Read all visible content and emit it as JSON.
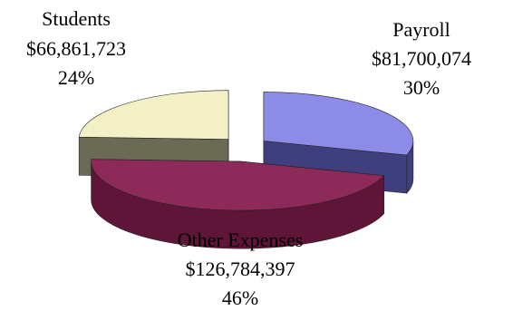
{
  "chart_data": {
    "type": "pie",
    "three_d": true,
    "exploded": true,
    "slices": [
      {
        "name": "Payroll",
        "value": 81700074,
        "value_label": "$81,700,074",
        "percent_label": "30%",
        "color": "#8c8ce8",
        "side_color": "#3f3f7e"
      },
      {
        "name": "Other Expenses",
        "value": 126784397,
        "value_label": "$126,784,397",
        "percent_label": "46%",
        "color": "#8e2a5a",
        "side_color": "#5e1538"
      },
      {
        "name": "Students",
        "value": 66861723,
        "value_label": "$66,861,723",
        "percent_label": "24%",
        "color": "#f2f0c4",
        "side_color": "#6b6b55"
      }
    ],
    "legend": "none"
  }
}
